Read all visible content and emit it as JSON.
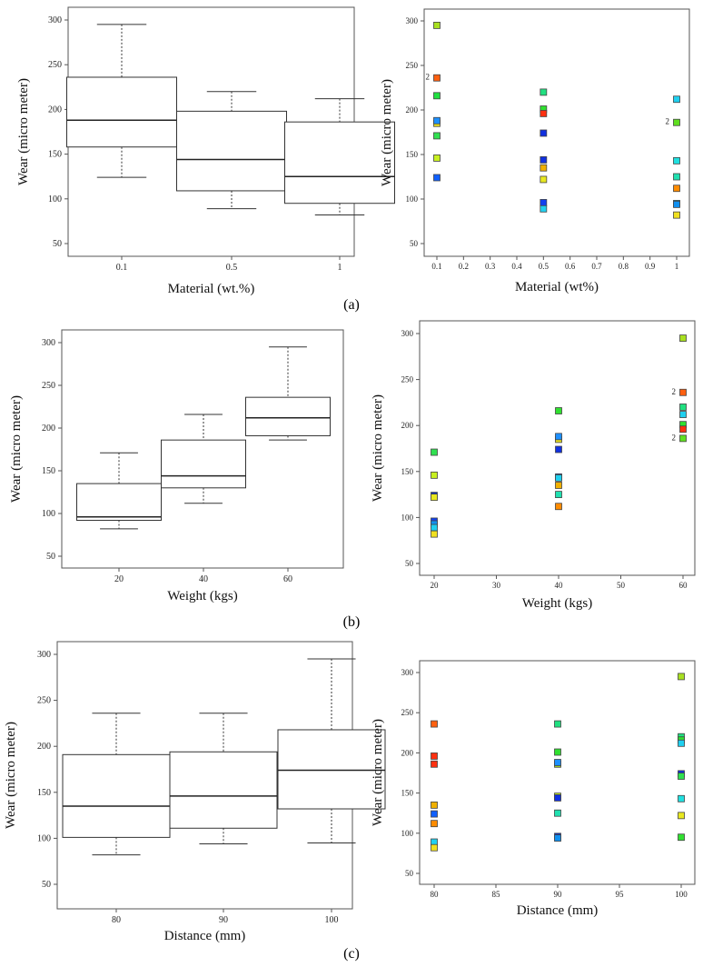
{
  "panel_labels": [
    "(a)",
    "(b)",
    "(c)"
  ],
  "chart_data": [
    {
      "type": "box",
      "panel": "a",
      "title": "",
      "xlabel": "Material (wt.%)",
      "ylabel": "Wear (micro meter)",
      "ylim": [
        50,
        300
      ],
      "yticks": [
        50,
        100,
        150,
        200,
        250,
        300
      ],
      "categories": [
        "0.1",
        "0.5",
        "1"
      ],
      "boxes": [
        {
          "min": 124,
          "q1": 158,
          "median": 188,
          "q3": 236,
          "max": 295
        },
        {
          "min": 89,
          "q1": 109,
          "median": 144,
          "q3": 198,
          "max": 220
        },
        {
          "min": 82,
          "q1": 95,
          "median": 125,
          "q3": 186,
          "max": 212
        }
      ]
    },
    {
      "type": "scatter",
      "panel": "a",
      "xlabel": "Material (wt%)",
      "ylabel": "Wear (micro meter)",
      "ylim": [
        50,
        300
      ],
      "xlim": [
        0.1,
        1
      ],
      "yticks": [
        50,
        100,
        150,
        200,
        250,
        300
      ],
      "xticks": [
        "0.1",
        "0.2",
        "0.3",
        "0.4",
        "0.5",
        "0.6",
        "0.7",
        "0.8",
        "0.9",
        "1"
      ],
      "points": [
        [
          0.1,
          295,
          "#a8e020"
        ],
        [
          0.1,
          236,
          "#ff6010",
          "2"
        ],
        [
          0.1,
          216,
          "#20e040"
        ],
        [
          0.1,
          185,
          "#e8e020"
        ],
        [
          0.1,
          188,
          "#1e90ff"
        ],
        [
          0.1,
          171,
          "#30e050"
        ],
        [
          0.1,
          146,
          "#c8f020"
        ],
        [
          0.1,
          124,
          "#1060ff"
        ],
        [
          0.5,
          220,
          "#20e080"
        ],
        [
          0.5,
          201,
          "#30e030"
        ],
        [
          0.5,
          196,
          "#ff3010"
        ],
        [
          0.5,
          174,
          "#1030e0"
        ],
        [
          0.5,
          144,
          "#1030e0"
        ],
        [
          0.5,
          135,
          "#f0b000"
        ],
        [
          0.5,
          122,
          "#e8e820"
        ],
        [
          0.5,
          96,
          "#1040f0"
        ],
        [
          0.5,
          89,
          "#20d0f0"
        ],
        [
          1,
          212,
          "#20d0f0"
        ],
        [
          1,
          186,
          "#60e020",
          "2"
        ],
        [
          1,
          143,
          "#20e0e0"
        ],
        [
          1,
          125,
          "#20e0b0"
        ],
        [
          1,
          112,
          "#ff8c00"
        ],
        [
          1,
          95,
          "#20c0d0"
        ],
        [
          1,
          94,
          "#1090f0"
        ],
        [
          1,
          82,
          "#f0e020"
        ]
      ]
    },
    {
      "type": "box",
      "panel": "b",
      "xlabel": "Weight (kgs)",
      "ylabel": "Wear (micro meter)",
      "ylim": [
        50,
        300
      ],
      "yticks": [
        50,
        100,
        150,
        200,
        250,
        300
      ],
      "categories": [
        "20",
        "40",
        "60"
      ],
      "boxes": [
        {
          "min": 82,
          "q1": 92,
          "median": 96,
          "q3": 135,
          "max": 171
        },
        {
          "min": 112,
          "q1": 130,
          "median": 144,
          "q3": 186,
          "max": 216
        },
        {
          "min": 186,
          "q1": 191,
          "median": 212,
          "q3": 236,
          "max": 295
        }
      ]
    },
    {
      "type": "scatter",
      "panel": "b",
      "xlabel": "Weight (kgs)",
      "ylabel": "Wear (micro meter)",
      "ylim": [
        50,
        300
      ],
      "xlim": [
        20,
        60
      ],
      "yticks": [
        50,
        100,
        150,
        200,
        250,
        300
      ],
      "xticks": [
        "20",
        "30",
        "40",
        "50",
        "60"
      ],
      "points": [
        [
          20,
          171,
          "#30e050"
        ],
        [
          20,
          146,
          "#c8f020"
        ],
        [
          20,
          124,
          "#1030c0"
        ],
        [
          20,
          122,
          "#e8e820"
        ],
        [
          20,
          96,
          "#1040f0"
        ],
        [
          20,
          93,
          "#1090f0"
        ],
        [
          20,
          89,
          "#20d0f0"
        ],
        [
          20,
          82,
          "#f0e020"
        ],
        [
          40,
          216,
          "#30e030"
        ],
        [
          40,
          185,
          "#e8e020"
        ],
        [
          40,
          188,
          "#1e90ff"
        ],
        [
          40,
          174,
          "#1030e0"
        ],
        [
          40,
          144,
          "#1030c0"
        ],
        [
          40,
          143,
          "#20d0f0"
        ],
        [
          40,
          135,
          "#f0b000"
        ],
        [
          40,
          125,
          "#20e0b0"
        ],
        [
          40,
          112,
          "#ff8c00"
        ],
        [
          60,
          295,
          "#a8e020"
        ],
        [
          60,
          236,
          "#ff6010",
          "2"
        ],
        [
          60,
          220,
          "#20e080"
        ],
        [
          60,
          212,
          "#20d0f0"
        ],
        [
          60,
          201,
          "#30e030"
        ],
        [
          60,
          196,
          "#ff3010"
        ],
        [
          60,
          186,
          "#60e020",
          "2"
        ]
      ]
    },
    {
      "type": "box",
      "panel": "c",
      "xlabel": "Distance (mm)",
      "ylabel": "Wear (micro meter)",
      "ylim": [
        50,
        300
      ],
      "yticks": [
        50,
        100,
        150,
        200,
        250,
        300
      ],
      "categories": [
        "80",
        "90",
        "100"
      ],
      "boxes": [
        {
          "min": 82,
          "q1": 101,
          "median": 135,
          "q3": 191,
          "max": 236
        },
        {
          "min": 94,
          "q1": 111,
          "median": 146,
          "q3": 194,
          "max": 236
        },
        {
          "min": 95,
          "q1": 132,
          "median": 174,
          "q3": 218,
          "max": 295
        }
      ]
    },
    {
      "type": "scatter",
      "panel": "c",
      "xlabel": "Distance (mm)",
      "ylabel": "Wear (micro meter)",
      "ylim": [
        50,
        300
      ],
      "xlim": [
        80,
        100
      ],
      "yticks": [
        50,
        100,
        150,
        200,
        250,
        300
      ],
      "xticks": [
        "80",
        "85",
        "90",
        "95",
        "100"
      ],
      "points": [
        [
          80,
          236,
          "#ff6010"
        ],
        [
          80,
          196,
          "#ff3010"
        ],
        [
          80,
          186,
          "#ff3010"
        ],
        [
          80,
          135,
          "#f0b000"
        ],
        [
          80,
          124,
          "#1060ff"
        ],
        [
          80,
          112,
          "#ff8c00"
        ],
        [
          80,
          89,
          "#20d0f0"
        ],
        [
          80,
          82,
          "#f0e020"
        ],
        [
          90,
          236,
          "#20e080"
        ],
        [
          90,
          201,
          "#30e030"
        ],
        [
          90,
          186,
          "#a8e020"
        ],
        [
          90,
          188,
          "#1e90ff"
        ],
        [
          90,
          146,
          "#c8f020"
        ],
        [
          90,
          144,
          "#1030e0"
        ],
        [
          90,
          125,
          "#20e0b0"
        ],
        [
          90,
          96,
          "#1030c0"
        ],
        [
          90,
          94,
          "#1090f0"
        ],
        [
          100,
          295,
          "#a8e020"
        ],
        [
          100,
          220,
          "#20e080"
        ],
        [
          100,
          216,
          "#30e030"
        ],
        [
          100,
          212,
          "#20d0f0"
        ],
        [
          100,
          174,
          "#1030e0"
        ],
        [
          100,
          171,
          "#30e050"
        ],
        [
          100,
          143,
          "#20e0e0"
        ],
        [
          100,
          122,
          "#e8e820"
        ],
        [
          100,
          95,
          "#30e030"
        ]
      ]
    }
  ]
}
